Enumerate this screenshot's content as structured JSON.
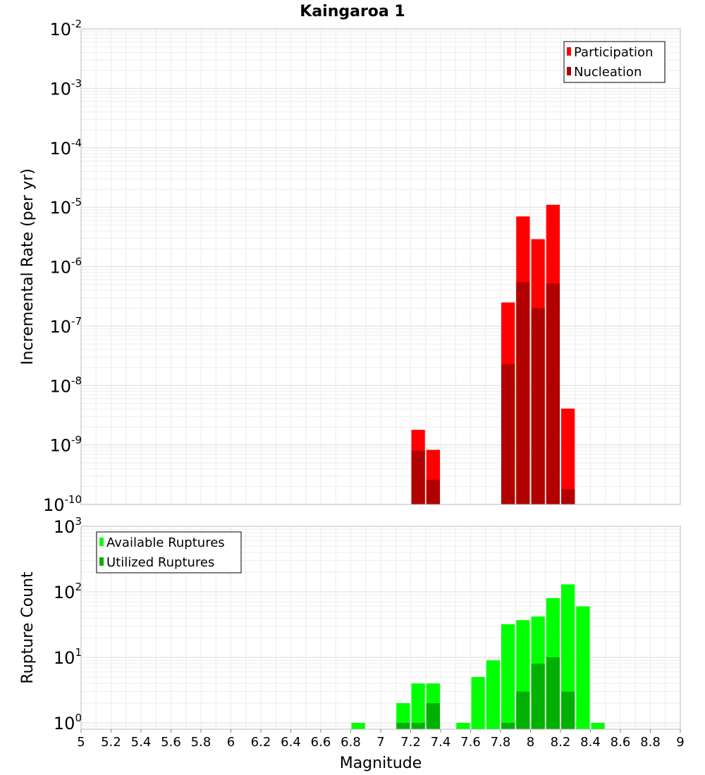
{
  "figure": {
    "title": "Kaingaroa 1",
    "xlabel": "Magnitude"
  },
  "chart_data": [
    {
      "type": "bar",
      "name": "rate-panel",
      "ylabel": "Incremental Rate (per yr)",
      "yscale": "log",
      "ylim": [
        1e-10,
        0.01
      ],
      "xlim": [
        5,
        9
      ],
      "grid": true,
      "legend_position": "top-right",
      "yticks": [
        {
          "base": "10",
          "exp": "-10",
          "value": 1e-10
        },
        {
          "base": "10",
          "exp": "-9",
          "value": 1e-09
        },
        {
          "base": "10",
          "exp": "-8",
          "value": 1e-08
        },
        {
          "base": "10",
          "exp": "-7",
          "value": 1e-07
        },
        {
          "base": "10",
          "exp": "-6",
          "value": 1e-06
        },
        {
          "base": "10",
          "exp": "-5",
          "value": 1e-05
        },
        {
          "base": "10",
          "exp": "-4",
          "value": 0.0001
        },
        {
          "base": "10",
          "exp": "-3",
          "value": 0.001
        },
        {
          "base": "10",
          "exp": "-2",
          "value": 0.01
        }
      ],
      "series": [
        {
          "name": "Participation",
          "color": "#ff0000",
          "x": [
            7.25,
            7.35,
            7.85,
            7.95,
            8.05,
            8.15,
            8.25
          ],
          "values": [
            1.8e-09,
            8.3e-10,
            2.5e-07,
            7e-06,
            2.9e-06,
            1.1e-05,
            4.1e-09
          ]
        },
        {
          "name": "Nucleation",
          "color": "#b00000",
          "x": [
            7.25,
            7.35,
            7.85,
            7.95,
            8.05,
            8.15,
            8.25
          ],
          "values": [
            8e-10,
            2.6e-10,
            2.3e-08,
            5.5e-07,
            2e-07,
            5.2e-07,
            1.8e-10
          ]
        }
      ]
    },
    {
      "type": "bar",
      "name": "count-panel",
      "ylabel": "Rupture Count",
      "yscale": "log",
      "ylim": [
        0.8,
        1000
      ],
      "xlim": [
        5,
        9
      ],
      "grid": true,
      "legend_position": "top-left",
      "yticks": [
        {
          "base": "10",
          "exp": "0",
          "value": 1
        },
        {
          "base": "10",
          "exp": "1",
          "value": 10
        },
        {
          "base": "10",
          "exp": "2",
          "value": 100
        },
        {
          "base": "10",
          "exp": "3",
          "value": 1000
        }
      ],
      "series": [
        {
          "name": "Available Ruptures",
          "color": "#00ff00",
          "x": [
            6.85,
            7.15,
            7.25,
            7.35,
            7.55,
            7.65,
            7.75,
            7.85,
            7.95,
            8.05,
            8.15,
            8.25,
            8.35,
            8.45
          ],
          "values": [
            1,
            2,
            4,
            4,
            1,
            5,
            9,
            32,
            37,
            42,
            80,
            130,
            60,
            1
          ]
        },
        {
          "name": "Utilized Ruptures",
          "color": "#00b000",
          "x": [
            7.15,
            7.25,
            7.35,
            7.85,
            7.95,
            8.05,
            8.15,
            8.25
          ],
          "values": [
            1,
            1,
            2,
            1,
            3,
            8,
            10,
            3
          ]
        }
      ]
    }
  ],
  "xticks": [
    "5",
    "5.2",
    "5.4",
    "5.6",
    "5.8",
    "6",
    "6.2",
    "6.4",
    "6.6",
    "6.8",
    "7",
    "7.2",
    "7.4",
    "7.6",
    "7.8",
    "8",
    "8.2",
    "8.4",
    "8.6",
    "8.8",
    "9"
  ]
}
